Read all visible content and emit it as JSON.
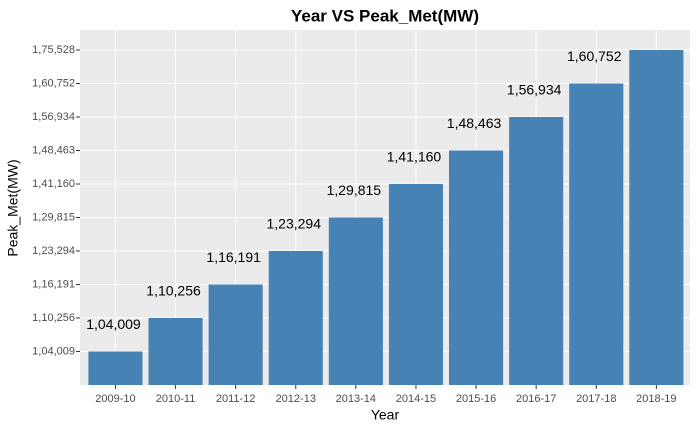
{
  "chart_data": {
    "type": "bar",
    "title": "Year VS  Peak_Met(MW)",
    "x_label": "Year",
    "y_label": "Peak_Met(MW)",
    "categories": [
      "2009-10",
      "2010-11",
      "2011-12",
      "2012-13",
      "2013-14",
      "2014-15",
      "2015-16",
      "2016-17",
      "2017-18",
      "2018-19"
    ],
    "values": [
      104009,
      110256,
      116191,
      123294,
      129815,
      141160,
      148463,
      156934,
      160752,
      175528
    ],
    "value_labels": [
      "1,04,009",
      "1,10,256",
      "1,16,191",
      "1,23,294",
      "1,29,815",
      "1,41,160",
      "1,48,463",
      "1,56,934",
      "1,60,752",
      null
    ],
    "color": "#4682b4",
    "yscale": "discrete",
    "yticks": [
      {
        "value": 104009,
        "label": "1,04,009"
      },
      {
        "value": 110256,
        "label": "1,10,256"
      },
      {
        "value": 116191,
        "label": "1,16,191"
      },
      {
        "value": 123294,
        "label": "1,23,294"
      },
      {
        "value": 129815,
        "label": "1,29,815"
      },
      {
        "value": 141160,
        "label": "1,41,160"
      },
      {
        "value": 148463,
        "label": "1,48,463"
      },
      {
        "value": 156934,
        "label": "1,56,934"
      },
      {
        "value": 160752,
        "label": "1,60,752"
      },
      {
        "value": 175528,
        "label": "1,75,528"
      }
    ],
    "grid": true
  }
}
